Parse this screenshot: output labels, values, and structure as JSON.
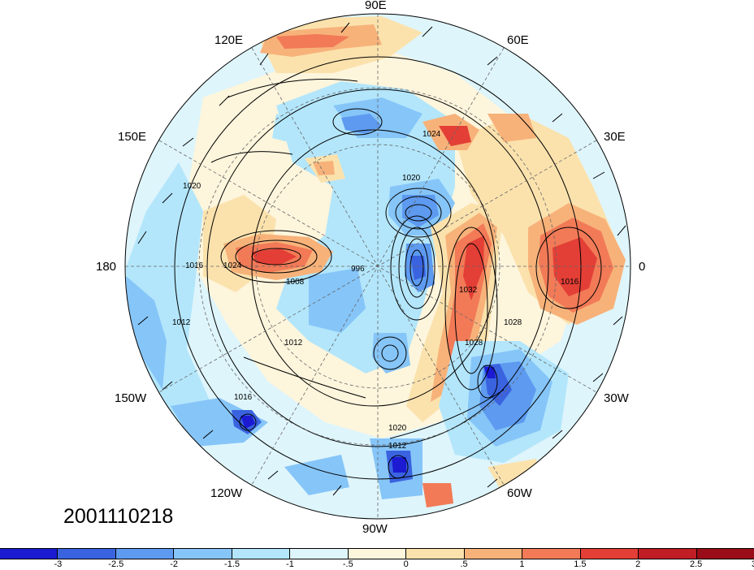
{
  "timestamp": "2001110218",
  "longitude_labels": {
    "deg_90e": "90E",
    "deg_120e": "120E",
    "deg_60e": "60E",
    "deg_150e": "150E",
    "deg_30e": "30E",
    "deg_180": "180",
    "deg_0": "0",
    "deg_150w": "150W",
    "deg_30w": "30W",
    "deg_120w": "120W",
    "deg_60w": "60W",
    "deg_90w": "90W"
  },
  "isobar_labels": [
    "1012",
    "1016",
    "1020",
    "1024",
    "1028",
    "1032",
    "1008",
    "996",
    "1012",
    "1016",
    "1020",
    "1024",
    "1028",
    "1016",
    "1020",
    "1012"
  ],
  "colorbar": {
    "colors": [
      "#1c1bd2",
      "#3a63e0",
      "#5d9af0",
      "#86c5f8",
      "#b3e6fb",
      "#def5fb",
      "#fdf5dc",
      "#fbe2ad",
      "#f7b27a",
      "#f27a57",
      "#e33f36",
      "#c01d25",
      "#9a0d18"
    ],
    "tick_labels": [
      "-3",
      "-2.5",
      "-2",
      "-1.5",
      "-1",
      "-.5",
      "0",
      ".5",
      "1",
      "1.5",
      "2",
      "2.5",
      "3"
    ]
  }
}
